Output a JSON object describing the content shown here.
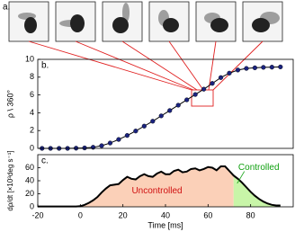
{
  "image_panel": {
    "label": "a."
  },
  "chart_data": [
    {
      "type": "line-markers",
      "label": "b.",
      "y_label": "ρ \\ 360°",
      "x": [
        -18,
        -14,
        -10,
        -6,
        -2,
        2,
        6,
        10,
        14,
        18,
        22,
        26,
        30,
        34,
        38,
        42,
        46,
        50,
        54,
        58,
        62,
        66,
        70,
        74,
        78,
        82,
        86,
        90,
        94
      ],
      "values": [
        0,
        0,
        0,
        0,
        0.02,
        0.05,
        0.12,
        0.3,
        0.6,
        1.0,
        1.45,
        1.95,
        2.5,
        3.05,
        3.65,
        4.25,
        4.85,
        5.45,
        6.05,
        6.65,
        7.3,
        7.95,
        8.45,
        8.8,
        8.98,
        9.05,
        9.1,
        9.12,
        9.15
      ],
      "color": "#1a237e",
      "line_color": "#000000",
      "xlim": [
        -20,
        100
      ],
      "ylim": [
        0,
        10
      ],
      "yticks": [
        0,
        2,
        4,
        6,
        8,
        10
      ]
    },
    {
      "type": "line",
      "label": "c.",
      "y_label": "dρ/dt [×10³deg s⁻¹]",
      "x_label": "Time [ms]",
      "x": [
        -20,
        -18,
        -16,
        -14,
        -12,
        -10,
        -8,
        -6,
        -4,
        -2,
        0,
        2,
        4,
        6,
        8,
        10,
        12,
        14,
        16,
        18,
        20,
        22,
        24,
        26,
        28,
        30,
        32,
        34,
        36,
        38,
        40,
        42,
        44,
        46,
        48,
        50,
        52,
        54,
        56,
        58,
        60,
        62,
        64,
        66,
        68,
        70,
        72,
        74,
        76,
        78,
        80,
        82,
        84,
        86,
        88,
        90,
        92,
        94
      ],
      "values": [
        0.5,
        0.5,
        0.5,
        0.5,
        0.5,
        0.5,
        0.5,
        0.5,
        0.5,
        0.5,
        1,
        3,
        6,
        10,
        15,
        22,
        28,
        33,
        34,
        35,
        41,
        46,
        43,
        42,
        47,
        50,
        47,
        46,
        51,
        54,
        50,
        50,
        55,
        57,
        53,
        54,
        58,
        59,
        56,
        58,
        61,
        60,
        56,
        62,
        62,
        55,
        48,
        43,
        37,
        30,
        23,
        17,
        12,
        8,
        5,
        3,
        2,
        2
      ],
      "color": "#000000",
      "regions": [
        {
          "label": "Uncontrolled",
          "from": 0,
          "to": 72,
          "color": "#fbd0b8",
          "text_color": "#d01010"
        },
        {
          "label": "Controlled",
          "from": 72,
          "to": 94,
          "color": "#c8f5a8",
          "text_color": "#10a010"
        }
      ],
      "xlim": [
        -20,
        100
      ],
      "ylim": [
        0,
        80
      ],
      "xticks": [
        -20,
        0,
        20,
        40,
        60,
        80
      ],
      "yticks": [
        0,
        20,
        40,
        60
      ]
    }
  ]
}
